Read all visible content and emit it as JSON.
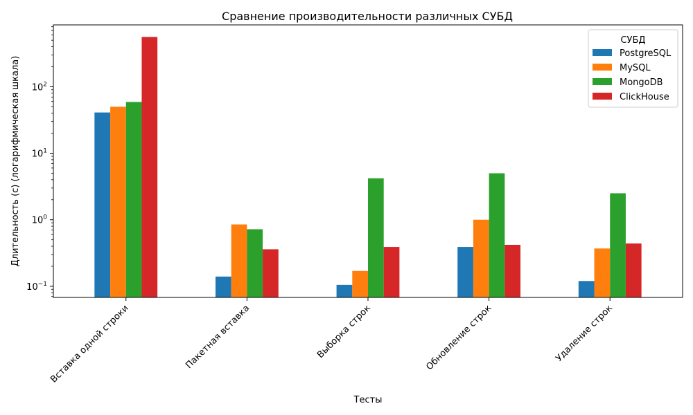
{
  "chart_data": {
    "type": "bar",
    "title": "Сравнение производительности различных СУБД",
    "xlabel": "Тесты",
    "ylabel": "Длительность (с) (логарифмическая шкала)",
    "yscale": "log",
    "ylim": [
      0.068,
      850
    ],
    "yticks": [
      {
        "value": 0.1,
        "base": "10",
        "exp": "−1"
      },
      {
        "value": 1,
        "base": "10",
        "exp": "0"
      },
      {
        "value": 10,
        "base": "10",
        "exp": "1"
      },
      {
        "value": 100,
        "base": "10",
        "exp": "2"
      }
    ],
    "categories": [
      "Вставка одной строки",
      "Пакетная вставка",
      "Выборка строк",
      "Обновление строк",
      "Удаление строк"
    ],
    "legend": {
      "title": "СУБД",
      "placement": "top-right"
    },
    "grid": false,
    "series": [
      {
        "name": "PostgreSQL",
        "color": "#1f77b4",
        "values": [
          41,
          0.14,
          0.105,
          0.39,
          0.12
        ]
      },
      {
        "name": "MySQL",
        "color": "#ff7f0e",
        "values": [
          50,
          0.85,
          0.17,
          1.0,
          0.37
        ]
      },
      {
        "name": "MongoDB",
        "color": "#2ca02c",
        "values": [
          59,
          0.72,
          4.2,
          5.0,
          2.5
        ]
      },
      {
        "name": "ClickHouse",
        "color": "#d62728",
        "values": [
          560,
          0.36,
          0.39,
          0.42,
          0.44
        ]
      }
    ]
  }
}
